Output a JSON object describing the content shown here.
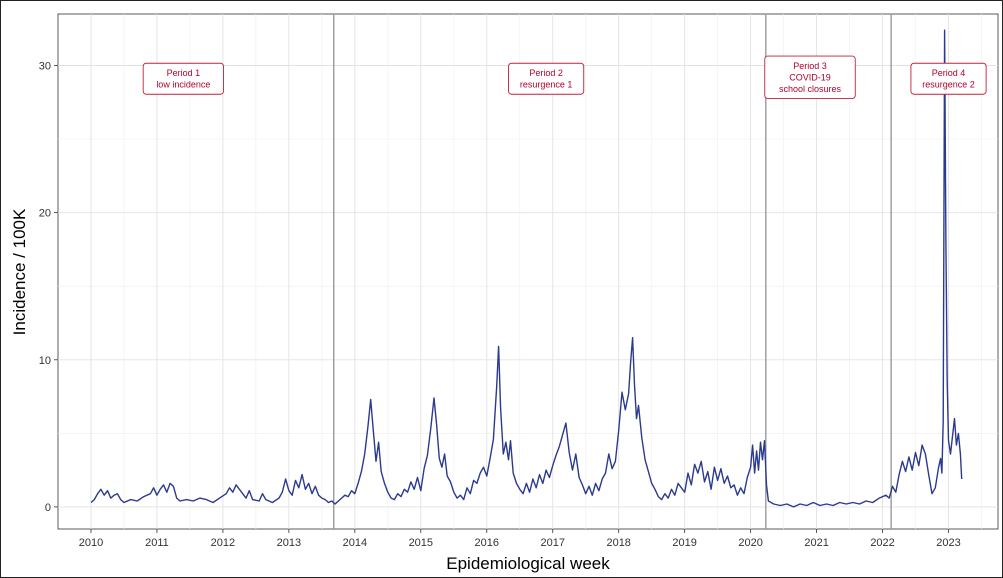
{
  "chart_data": {
    "type": "line",
    "title": "",
    "xlabel": "Epidemiological week",
    "ylabel": "Incidence / 100K",
    "xlim": [
      2009.5,
      2023.75
    ],
    "ylim": [
      -1.5,
      33.5
    ],
    "x_ticks": [
      2010,
      2011,
      2012,
      2013,
      2014,
      2015,
      2016,
      2017,
      2018,
      2019,
      2020,
      2021,
      2022,
      2023
    ],
    "x_tick_labels": [
      "2010",
      "2011",
      "2012",
      "2013",
      "2014",
      "2015",
      "2016",
      "2017",
      "2018",
      "2019",
      "2020",
      "2021",
      "2022",
      "2023"
    ],
    "y_ticks": [
      0,
      10,
      20,
      30
    ],
    "y_tick_labels": [
      "0",
      "10",
      "20",
      "30"
    ],
    "grid": true,
    "line_color": "#2b3a8f",
    "period_boundaries": [
      2013.68,
      2020.23,
      2022.13
    ],
    "annotations": [
      {
        "lines": [
          "Period 1",
          "low incidence"
        ],
        "x": 2011.4,
        "y": 29.1
      },
      {
        "lines": [
          "Period 2",
          "resurgence 1"
        ],
        "x": 2016.9,
        "y": 29.1
      },
      {
        "lines": [
          "Period 3",
          "COVID-19",
          "school closures"
        ],
        "x": 2020.9,
        "y": 29.2
      },
      {
        "lines": [
          "Period 4",
          "resurgence 2"
        ],
        "x": 2023.0,
        "y": 29.1
      }
    ],
    "series": [
      {
        "values": [
          [
            2010.0,
            0.3
          ],
          [
            2010.05,
            0.5
          ],
          [
            2010.1,
            0.9
          ],
          [
            2010.15,
            1.2
          ],
          [
            2010.2,
            0.8
          ],
          [
            2010.25,
            1.1
          ],
          [
            2010.3,
            0.6
          ],
          [
            2010.35,
            0.8
          ],
          [
            2010.4,
            0.9
          ],
          [
            2010.45,
            0.5
          ],
          [
            2010.5,
            0.3
          ],
          [
            2010.6,
            0.5
          ],
          [
            2010.7,
            0.4
          ],
          [
            2010.8,
            0.7
          ],
          [
            2010.9,
            0.9
          ],
          [
            2010.95,
            1.3
          ],
          [
            2011.0,
            0.8
          ],
          [
            2011.05,
            1.2
          ],
          [
            2011.1,
            1.5
          ],
          [
            2011.15,
            1.0
          ],
          [
            2011.2,
            1.6
          ],
          [
            2011.25,
            1.4
          ],
          [
            2011.3,
            0.6
          ],
          [
            2011.35,
            0.4
          ],
          [
            2011.45,
            0.5
          ],
          [
            2011.55,
            0.4
          ],
          [
            2011.65,
            0.6
          ],
          [
            2011.75,
            0.5
          ],
          [
            2011.85,
            0.3
          ],
          [
            2011.95,
            0.6
          ],
          [
            2012.05,
            0.9
          ],
          [
            2012.1,
            1.3
          ],
          [
            2012.15,
            1.0
          ],
          [
            2012.2,
            1.5
          ],
          [
            2012.25,
            1.2
          ],
          [
            2012.3,
            0.9
          ],
          [
            2012.35,
            0.6
          ],
          [
            2012.4,
            1.1
          ],
          [
            2012.45,
            0.5
          ],
          [
            2012.55,
            0.4
          ],
          [
            2012.6,
            0.9
          ],
          [
            2012.65,
            0.5
          ],
          [
            2012.75,
            0.3
          ],
          [
            2012.85,
            0.6
          ],
          [
            2012.9,
            1.0
          ],
          [
            2012.95,
            1.9
          ],
          [
            2013.0,
            1.1
          ],
          [
            2013.05,
            0.8
          ],
          [
            2013.1,
            1.8
          ],
          [
            2013.15,
            1.3
          ],
          [
            2013.2,
            2.2
          ],
          [
            2013.25,
            1.2
          ],
          [
            2013.3,
            1.6
          ],
          [
            2013.35,
            0.9
          ],
          [
            2013.4,
            1.4
          ],
          [
            2013.45,
            0.8
          ],
          [
            2013.5,
            0.6
          ],
          [
            2013.55,
            0.5
          ],
          [
            2013.6,
            0.3
          ],
          [
            2013.65,
            0.4
          ],
          [
            2013.7,
            0.2
          ],
          [
            2013.75,
            0.4
          ],
          [
            2013.8,
            0.6
          ],
          [
            2013.85,
            0.8
          ],
          [
            2013.9,
            0.7
          ],
          [
            2013.95,
            1.1
          ],
          [
            2014.0,
            0.9
          ],
          [
            2014.05,
            1.6
          ],
          [
            2014.1,
            2.4
          ],
          [
            2014.15,
            3.6
          ],
          [
            2014.2,
            5.5
          ],
          [
            2014.24,
            7.3
          ],
          [
            2014.28,
            5.2
          ],
          [
            2014.32,
            3.1
          ],
          [
            2014.36,
            4.4
          ],
          [
            2014.4,
            2.4
          ],
          [
            2014.45,
            1.6
          ],
          [
            2014.5,
            1.0
          ],
          [
            2014.55,
            0.6
          ],
          [
            2014.6,
            0.5
          ],
          [
            2014.65,
            0.9
          ],
          [
            2014.7,
            0.7
          ],
          [
            2014.75,
            1.2
          ],
          [
            2014.8,
            1.0
          ],
          [
            2014.85,
            1.7
          ],
          [
            2014.9,
            1.2
          ],
          [
            2014.95,
            2.0
          ],
          [
            2015.0,
            1.1
          ],
          [
            2015.05,
            2.6
          ],
          [
            2015.1,
            3.5
          ],
          [
            2015.15,
            5.3
          ],
          [
            2015.2,
            7.4
          ],
          [
            2015.24,
            5.6
          ],
          [
            2015.28,
            3.3
          ],
          [
            2015.32,
            2.7
          ],
          [
            2015.36,
            3.6
          ],
          [
            2015.4,
            2.1
          ],
          [
            2015.45,
            1.7
          ],
          [
            2015.5,
            1.0
          ],
          [
            2015.55,
            0.6
          ],
          [
            2015.6,
            0.8
          ],
          [
            2015.65,
            0.5
          ],
          [
            2015.7,
            1.3
          ],
          [
            2015.75,
            0.9
          ],
          [
            2015.8,
            1.8
          ],
          [
            2015.85,
            1.6
          ],
          [
            2015.9,
            2.3
          ],
          [
            2015.95,
            2.7
          ],
          [
            2016.0,
            2.1
          ],
          [
            2016.05,
            3.3
          ],
          [
            2016.1,
            4.6
          ],
          [
            2016.15,
            8.2
          ],
          [
            2016.18,
            10.9
          ],
          [
            2016.21,
            6.7
          ],
          [
            2016.25,
            3.6
          ],
          [
            2016.29,
            4.4
          ],
          [
            2016.33,
            3.2
          ],
          [
            2016.36,
            4.5
          ],
          [
            2016.4,
            2.3
          ],
          [
            2016.45,
            1.6
          ],
          [
            2016.5,
            1.2
          ],
          [
            2016.55,
            0.9
          ],
          [
            2016.6,
            1.6
          ],
          [
            2016.65,
            1.0
          ],
          [
            2016.7,
            1.9
          ],
          [
            2016.75,
            1.3
          ],
          [
            2016.8,
            2.2
          ],
          [
            2016.85,
            1.6
          ],
          [
            2016.9,
            2.5
          ],
          [
            2016.95,
            2.0
          ],
          [
            2017.0,
            2.8
          ],
          [
            2017.05,
            3.5
          ],
          [
            2017.1,
            4.1
          ],
          [
            2017.15,
            4.9
          ],
          [
            2017.2,
            5.7
          ],
          [
            2017.25,
            3.7
          ],
          [
            2017.3,
            2.5
          ],
          [
            2017.35,
            3.6
          ],
          [
            2017.4,
            2.0
          ],
          [
            2017.45,
            1.5
          ],
          [
            2017.5,
            0.9
          ],
          [
            2017.55,
            1.4
          ],
          [
            2017.6,
            0.8
          ],
          [
            2017.65,
            1.6
          ],
          [
            2017.7,
            1.1
          ],
          [
            2017.75,
            1.9
          ],
          [
            2017.8,
            2.3
          ],
          [
            2017.85,
            3.6
          ],
          [
            2017.9,
            2.6
          ],
          [
            2017.95,
            3.1
          ],
          [
            2018.0,
            5.2
          ],
          [
            2018.05,
            7.8
          ],
          [
            2018.1,
            6.6
          ],
          [
            2018.15,
            7.7
          ],
          [
            2018.18,
            9.8
          ],
          [
            2018.21,
            11.5
          ],
          [
            2018.24,
            8.3
          ],
          [
            2018.27,
            6.0
          ],
          [
            2018.3,
            6.9
          ],
          [
            2018.35,
            4.7
          ],
          [
            2018.4,
            3.2
          ],
          [
            2018.45,
            2.4
          ],
          [
            2018.5,
            1.6
          ],
          [
            2018.55,
            1.2
          ],
          [
            2018.6,
            0.7
          ],
          [
            2018.65,
            0.5
          ],
          [
            2018.7,
            0.9
          ],
          [
            2018.75,
            0.6
          ],
          [
            2018.8,
            1.2
          ],
          [
            2018.85,
            0.8
          ],
          [
            2018.9,
            1.6
          ],
          [
            2018.95,
            1.3
          ],
          [
            2019.0,
            1.0
          ],
          [
            2019.05,
            2.3
          ],
          [
            2019.1,
            1.5
          ],
          [
            2019.15,
            2.9
          ],
          [
            2019.2,
            2.3
          ],
          [
            2019.25,
            3.1
          ],
          [
            2019.3,
            1.7
          ],
          [
            2019.35,
            2.4
          ],
          [
            2019.4,
            1.2
          ],
          [
            2019.45,
            2.7
          ],
          [
            2019.5,
            1.8
          ],
          [
            2019.55,
            2.6
          ],
          [
            2019.6,
            1.6
          ],
          [
            2019.65,
            2.1
          ],
          [
            2019.7,
            1.3
          ],
          [
            2019.75,
            1.5
          ],
          [
            2019.8,
            0.8
          ],
          [
            2019.85,
            1.3
          ],
          [
            2019.9,
            0.9
          ],
          [
            2019.95,
            2.0
          ],
          [
            2020.0,
            2.7
          ],
          [
            2020.03,
            4.2
          ],
          [
            2020.06,
            2.3
          ],
          [
            2020.09,
            3.8
          ],
          [
            2020.12,
            2.5
          ],
          [
            2020.15,
            4.4
          ],
          [
            2020.18,
            3.2
          ],
          [
            2020.21,
            4.5
          ],
          [
            2020.24,
            1.5
          ],
          [
            2020.27,
            0.4
          ],
          [
            2020.35,
            0.2
          ],
          [
            2020.45,
            0.1
          ],
          [
            2020.55,
            0.2
          ],
          [
            2020.65,
            0.0
          ],
          [
            2020.75,
            0.2
          ],
          [
            2020.85,
            0.1
          ],
          [
            2020.95,
            0.3
          ],
          [
            2021.05,
            0.1
          ],
          [
            2021.15,
            0.2
          ],
          [
            2021.25,
            0.1
          ],
          [
            2021.35,
            0.3
          ],
          [
            2021.45,
            0.2
          ],
          [
            2021.55,
            0.3
          ],
          [
            2021.65,
            0.2
          ],
          [
            2021.75,
            0.4
          ],
          [
            2021.85,
            0.3
          ],
          [
            2021.95,
            0.6
          ],
          [
            2022.05,
            0.8
          ],
          [
            2022.1,
            0.6
          ],
          [
            2022.15,
            1.4
          ],
          [
            2022.2,
            1.0
          ],
          [
            2022.25,
            2.2
          ],
          [
            2022.3,
            3.1
          ],
          [
            2022.35,
            2.4
          ],
          [
            2022.4,
            3.4
          ],
          [
            2022.45,
            2.5
          ],
          [
            2022.5,
            3.7
          ],
          [
            2022.55,
            2.8
          ],
          [
            2022.6,
            4.2
          ],
          [
            2022.65,
            3.6
          ],
          [
            2022.7,
            2.2
          ],
          [
            2022.75,
            0.9
          ],
          [
            2022.8,
            1.3
          ],
          [
            2022.85,
            2.7
          ],
          [
            2022.88,
            3.3
          ],
          [
            2022.9,
            2.3
          ],
          [
            2022.92,
            5.8
          ],
          [
            2022.94,
            32.4
          ],
          [
            2022.96,
            18.0
          ],
          [
            2022.98,
            8.5
          ],
          [
            2023.0,
            4.5
          ],
          [
            2023.03,
            3.6
          ],
          [
            2023.06,
            4.8
          ],
          [
            2023.09,
            6.0
          ],
          [
            2023.12,
            4.2
          ],
          [
            2023.15,
            5.0
          ],
          [
            2023.18,
            3.6
          ],
          [
            2023.2,
            1.9
          ]
        ]
      }
    ]
  }
}
